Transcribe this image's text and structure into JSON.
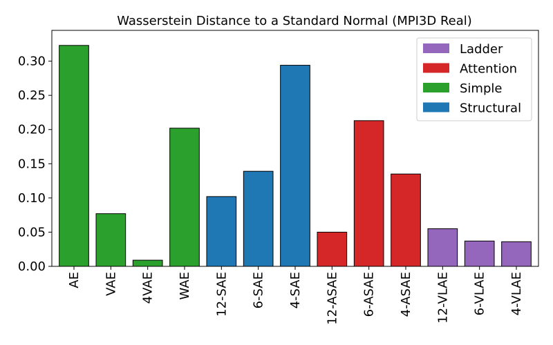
{
  "chart_data": {
    "type": "bar",
    "title": "Wasserstein Distance to a Standard Normal (MPI3D Real)",
    "xlabel": "",
    "ylabel": "",
    "ylim": [
      0,
      0.345
    ],
    "yticks": [
      "0.00",
      "0.05",
      "0.10",
      "0.15",
      "0.20",
      "0.25",
      "0.30"
    ],
    "categories": [
      "AE",
      "VAE",
      "4VAE",
      "WAE",
      "12-SAE",
      "6-SAE",
      "4-SAE",
      "12-ASAE",
      "6-ASAE",
      "4-ASAE",
      "12-VLAE",
      "6-VLAE",
      "4-VLAE"
    ],
    "values": [
      0.323,
      0.077,
      0.009,
      0.202,
      0.102,
      0.139,
      0.294,
      0.05,
      0.213,
      0.135,
      0.055,
      0.037,
      0.036
    ],
    "groups": [
      "Simple",
      "Simple",
      "Simple",
      "Simple",
      "Structural",
      "Structural",
      "Structural",
      "Attention",
      "Attention",
      "Attention",
      "Ladder",
      "Ladder",
      "Ladder"
    ],
    "legend": [
      {
        "name": "Ladder",
        "color": "#9467bd"
      },
      {
        "name": "Attention",
        "color": "#d62728"
      },
      {
        "name": "Simple",
        "color": "#2ca02c"
      },
      {
        "name": "Structural",
        "color": "#1f77b4"
      }
    ],
    "legend_position": "top-right",
    "grid": false
  }
}
